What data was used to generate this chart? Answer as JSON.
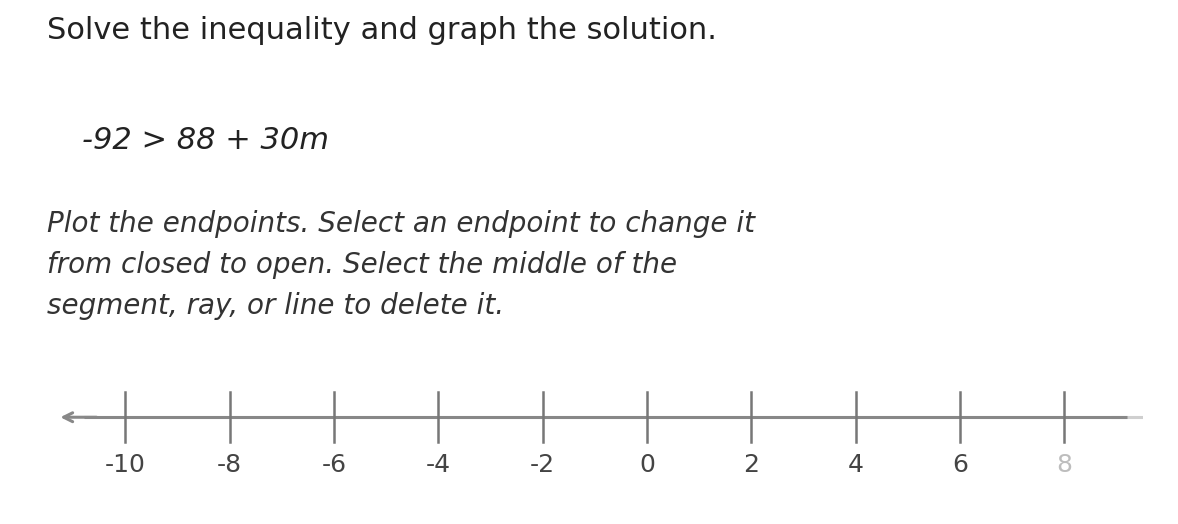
{
  "title_line1": "Solve the inequality and graph the solution.",
  "inequality_display": "-92 > 88 + 30m",
  "instruction": "Plot the endpoints. Select an endpoint to change it\nfrom closed to open. Select the middle of the\nsegment, ray, or line to delete it.",
  "number_line_min": -11.5,
  "number_line_max": 9.5,
  "tick_values": [
    -10,
    -8,
    -6,
    -4,
    -2,
    0,
    2,
    4,
    6,
    8
  ],
  "axis_color": "#888888",
  "tick_color": "#777777",
  "label_color": "#444444",
  "background_color": "#ffffff",
  "title_fontsize": 22,
  "inequality_fontsize": 22,
  "instruction_fontsize": 20,
  "tick_label_fontsize": 18,
  "figure_width": 11.78,
  "figure_height": 5.24
}
